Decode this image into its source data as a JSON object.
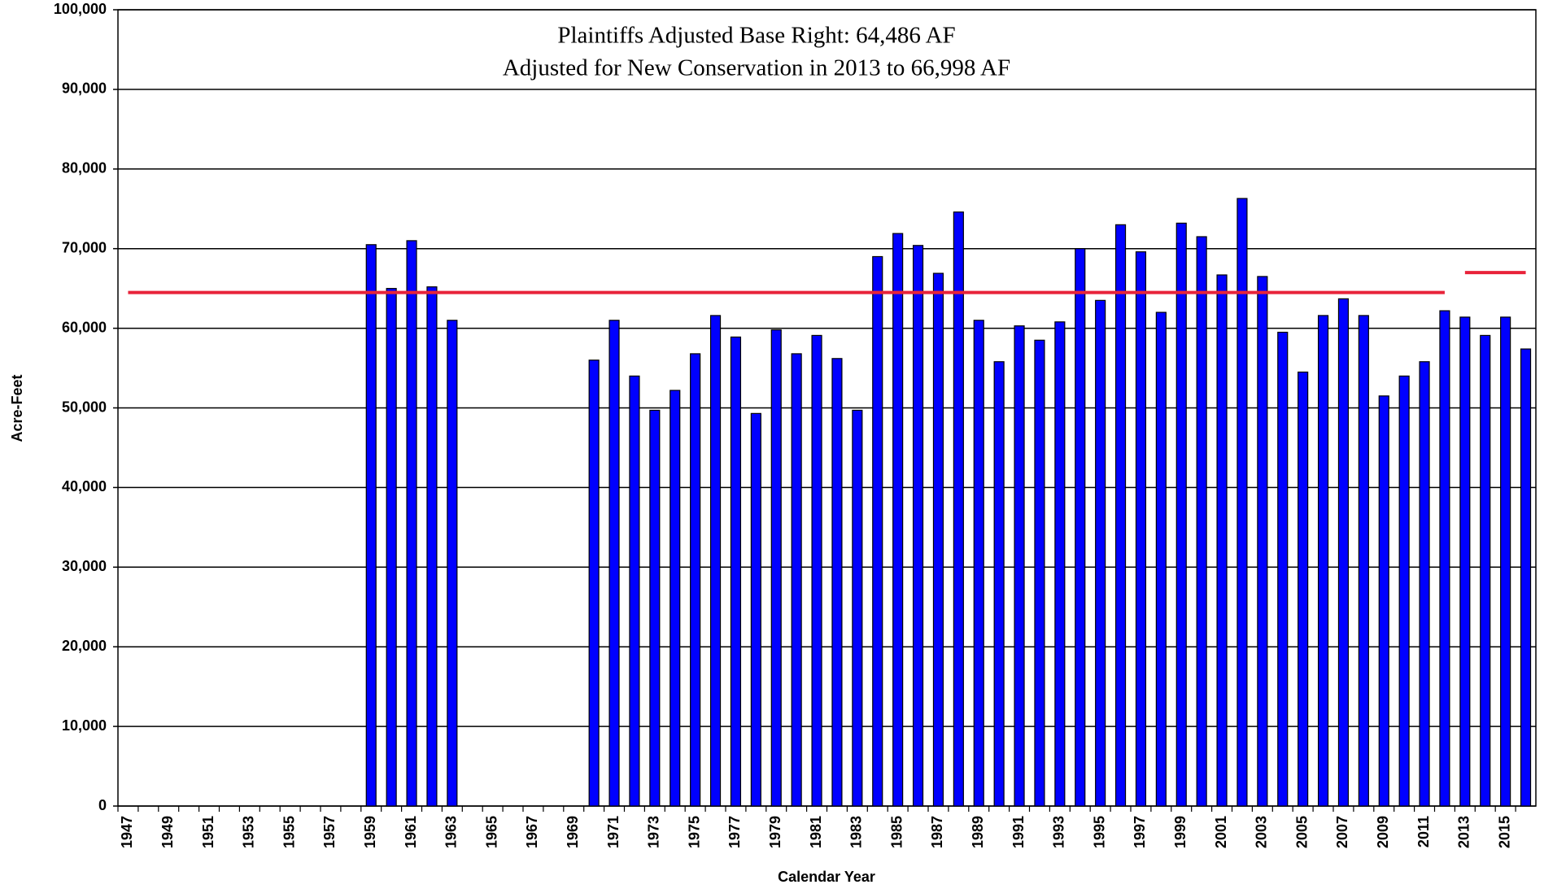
{
  "chart_data": {
    "type": "bar",
    "annotation": [
      "Plaintiffs Adjusted Base Right: 64,486 AF",
      "Adjusted for New Conservation in 2013 to 66,998 AF"
    ],
    "xlabel": "Calendar Year",
    "ylabel": "Acre-Feet",
    "categories": [
      "1947",
      null,
      "1949",
      null,
      "1951",
      null,
      "1953",
      null,
      "1955",
      null,
      "1957",
      null,
      "1959",
      null,
      "1961",
      null,
      "1963",
      null,
      "1965",
      null,
      "1967",
      null,
      "1969",
      null,
      "1971",
      null,
      "1973",
      null,
      "1975",
      null,
      "1977",
      null,
      "1979",
      null,
      "1981",
      null,
      "1983",
      null,
      "1985",
      null,
      "1987",
      null,
      "1989",
      null,
      "1991",
      null,
      "1993",
      null,
      "1995",
      null,
      "1997",
      null,
      "1999",
      null,
      "2001",
      null,
      "2003",
      null,
      "2005",
      null,
      "2007",
      null,
      "2009",
      null,
      "2011",
      null,
      "2013",
      null,
      "2015",
      null
    ],
    "values": [
      null,
      null,
      null,
      null,
      null,
      null,
      null,
      null,
      null,
      null,
      null,
      null,
      70500,
      65000,
      71000,
      65200,
      61000,
      null,
      null,
      null,
      null,
      null,
      null,
      56000,
      61000,
      54000,
      49700,
      52200,
      56800,
      61600,
      58900,
      49300,
      59800,
      56800,
      59100,
      56200,
      49700,
      69000,
      71900,
      70400,
      66900,
      74600,
      61000,
      55800,
      60300,
      58500,
      60800,
      70000,
      63500,
      73000,
      69600,
      62000,
      73200,
      71500,
      66700,
      76300,
      66500,
      59500,
      54500,
      61600,
      63700,
      61600,
      51500,
      54000,
      55800,
      62200,
      61400,
      59100,
      61400,
      57400
    ],
    "color": "#0000ff",
    "lines": [
      {
        "color": "#e8233a",
        "values": [
          64486,
          64486,
          64486,
          64486,
          64486,
          64486,
          64486,
          64486,
          64486,
          64486,
          64486,
          64486,
          64486,
          64486,
          64486,
          64486,
          64486,
          64486,
          64486,
          64486,
          64486,
          64486,
          64486,
          64486,
          64486,
          64486,
          64486,
          64486,
          64486,
          64486,
          64486,
          64486,
          64486,
          64486,
          64486,
          64486,
          64486,
          64486,
          64486,
          64486,
          64486,
          64486,
          64486,
          64486,
          64486,
          64486,
          64486,
          64486,
          64486,
          64486,
          64486,
          64486,
          64486,
          64486,
          64486,
          64486,
          64486,
          64486,
          64486,
          64486,
          64486,
          64486,
          64486,
          64486,
          64486,
          64486,
          null,
          null,
          null,
          null
        ]
      },
      {
        "color": "#e8233a",
        "values": [
          null,
          null,
          null,
          null,
          null,
          null,
          null,
          null,
          null,
          null,
          null,
          null,
          null,
          null,
          null,
          null,
          null,
          null,
          null,
          null,
          null,
          null,
          null,
          null,
          null,
          null,
          null,
          null,
          null,
          null,
          null,
          null,
          null,
          null,
          null,
          null,
          null,
          null,
          null,
          null,
          null,
          null,
          null,
          null,
          null,
          null,
          null,
          null,
          null,
          null,
          null,
          null,
          null,
          null,
          null,
          null,
          null,
          null,
          null,
          null,
          null,
          null,
          null,
          null,
          null,
          null,
          66998,
          66998,
          66998,
          66998
        ]
      }
    ],
    "ylim": [
      0,
      100000
    ],
    "yticks": [
      0,
      {
        "value": 10000,
        "label": "10,000"
      },
      {
        "value": 20000,
        "label": "20,000"
      },
      {
        "value": 30000,
        "label": "30,000"
      },
      {
        "value": 40000,
        "label": "40,000"
      },
      {
        "value": 50000,
        "label": "50,000"
      },
      {
        "value": 60000,
        "label": "60,000"
      },
      {
        "value": 70000,
        "label": "70,000"
      },
      {
        "value": 80000,
        "label": "80,000"
      },
      {
        "value": 90000,
        "label": "90,000"
      },
      {
        "value": 100000,
        "label": "100,000"
      }
    ],
    "grid": true
  }
}
